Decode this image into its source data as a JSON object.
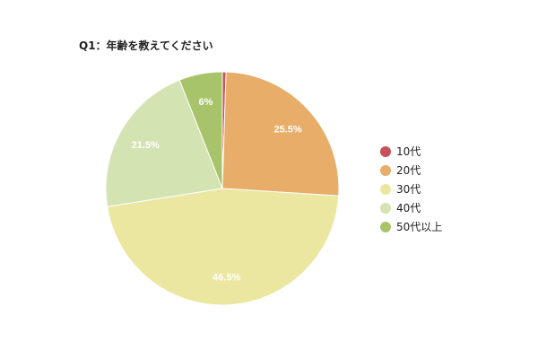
{
  "chart_data": {
    "type": "pie",
    "title": "Q1：年齢を教えてください",
    "categories": [
      "10代",
      "20代",
      "30代",
      "40代",
      "50代以上"
    ],
    "values": [
      0.5,
      25.5,
      46.5,
      21.5,
      6
    ],
    "data_labels": [
      "",
      "25.5%",
      "46.5%",
      "21.5%",
      "6%"
    ],
    "colors": [
      "#c8505a",
      "#e8ad68",
      "#ece7a0",
      "#d3e3b2",
      "#a8c46a"
    ],
    "start_angle_deg": 0,
    "direction": "clockwise",
    "legend_position": "right"
  }
}
